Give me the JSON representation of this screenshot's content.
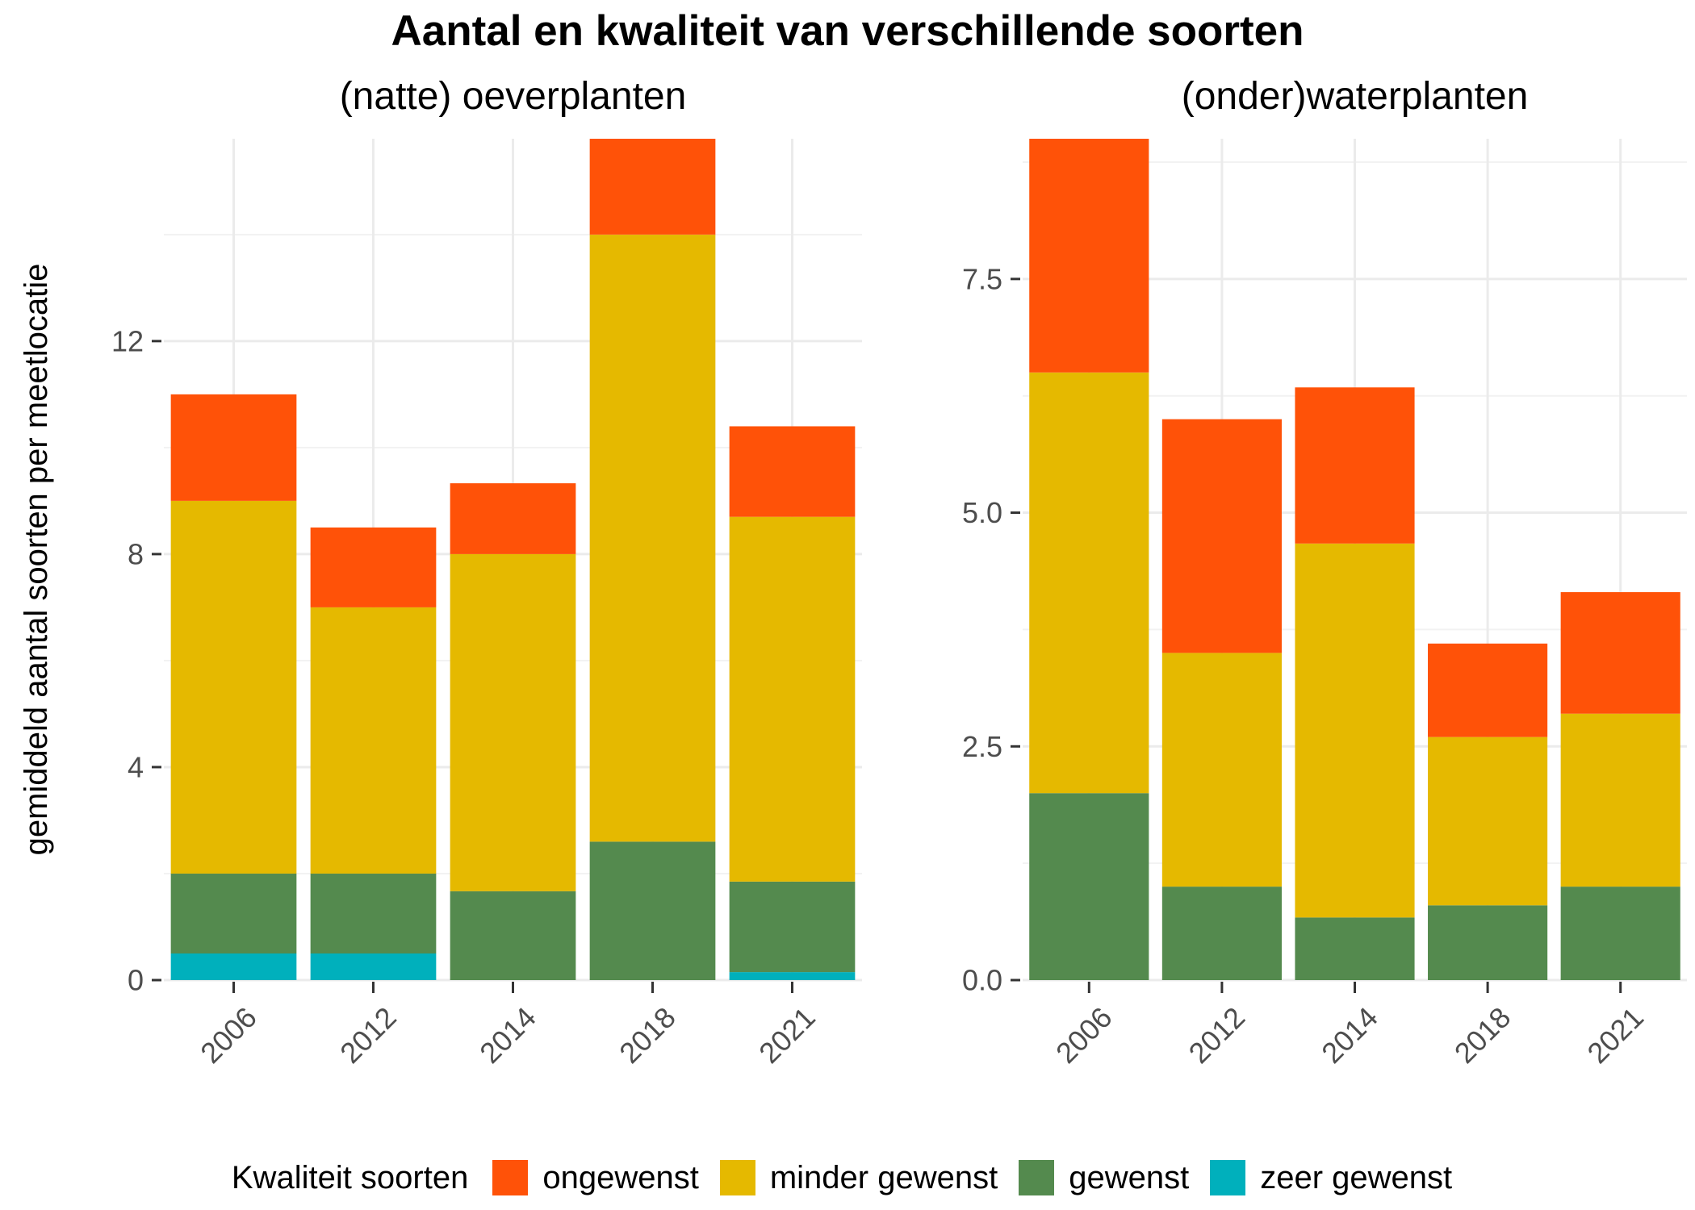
{
  "title": "Aantal en kwaliteit van verschillende soorten",
  "colors": {
    "ongewenst": "#FF5208",
    "minder gewenst": "#E5B900",
    "gewenst": "#548A4E",
    "zeer gewenst": "#00B0BC"
  },
  "legend": {
    "title": "Kwaliteit soorten",
    "items": [
      "ongewenst",
      "minder gewenst",
      "gewenst",
      "zeer gewenst"
    ]
  },
  "chart_data": [
    {
      "type": "bar",
      "stacked": true,
      "title": "(natte) oeverplanten",
      "ylabel": "gemiddeld aantal soorten per meetlocatie",
      "xlabel": "",
      "categories": [
        "2006",
        "2012",
        "2014",
        "2018",
        "2021"
      ],
      "ylim": [
        0,
        15.8
      ],
      "yticks": [
        0,
        4,
        8,
        12
      ],
      "ytick_labels": [
        "0",
        "4",
        "8",
        "12"
      ],
      "series": [
        {
          "name": "zeer gewenst",
          "values": [
            0.5,
            0.5,
            0,
            0,
            0.15
          ]
        },
        {
          "name": "gewenst",
          "values": [
            1.5,
            1.5,
            1.67,
            2.6,
            1.7
          ]
        },
        {
          "name": "minder gewenst",
          "values": [
            7.0,
            5.0,
            6.33,
            11.4,
            6.85
          ]
        },
        {
          "name": "ongewenst",
          "values": [
            2.0,
            1.5,
            1.33,
            1.8,
            1.7
          ]
        }
      ]
    },
    {
      "type": "bar",
      "stacked": true,
      "title": "(onder)waterplanten",
      "xlabel": "",
      "categories": [
        "2006",
        "2012",
        "2014",
        "2018",
        "2021"
      ],
      "ylim": [
        0,
        9.0
      ],
      "yticks": [
        0,
        2.5,
        5.0,
        7.5
      ],
      "ytick_labels": [
        "0.0",
        "2.5",
        "5.0",
        "7.5"
      ],
      "series": [
        {
          "name": "zeer gewenst",
          "values": [
            0,
            0,
            0,
            0,
            0
          ]
        },
        {
          "name": "gewenst",
          "values": [
            2.0,
            1.0,
            0.67,
            0.8,
            1.0
          ]
        },
        {
          "name": "minder gewenst",
          "values": [
            4.5,
            2.5,
            4.0,
            1.8,
            1.85
          ]
        },
        {
          "name": "ongewenst",
          "values": [
            2.5,
            2.5,
            1.67,
            1.0,
            1.3
          ]
        }
      ]
    }
  ]
}
